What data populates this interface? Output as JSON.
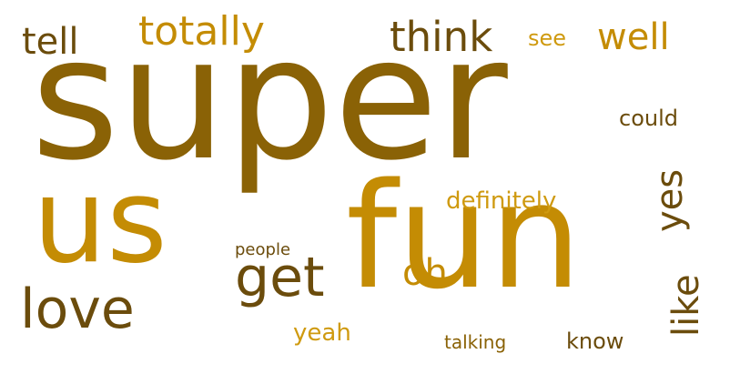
{
  "palette": {
    "dark_brown": "#6b4c0c",
    "brown": "#8a6206",
    "gold": "#c48c04",
    "light_gold": "#cf9a10"
  },
  "words": [
    {
      "text": "super",
      "weight": 1.0,
      "color": "#8a6206"
    },
    {
      "text": "fun",
      "weight": 0.95,
      "color": "#c48c04"
    },
    {
      "text": "us",
      "weight": 0.62,
      "color": "#c48c04"
    },
    {
      "text": "get",
      "weight": 0.31,
      "color": "#6b4c0c"
    },
    {
      "text": "love",
      "weight": 0.28,
      "color": "#6b4c0c"
    },
    {
      "text": "think",
      "weight": 0.18,
      "color": "#6b4c0c"
    },
    {
      "text": "totally",
      "weight": 0.18,
      "color": "#c48c04"
    },
    {
      "text": "tell",
      "weight": 0.16,
      "color": "#6b4c0c"
    },
    {
      "text": "well",
      "weight": 0.15,
      "color": "#c48c04"
    },
    {
      "text": "see",
      "weight": 0.1,
      "color": "#cf9a10"
    },
    {
      "text": "could",
      "weight": 0.1,
      "color": "#6b4c0c"
    },
    {
      "text": "yes",
      "weight": 0.15,
      "color": "#6b4c0c"
    },
    {
      "text": "definitely",
      "weight": 0.11,
      "color": "#cf9a10"
    },
    {
      "text": "like",
      "weight": 0.15,
      "color": "#6b4c0c"
    },
    {
      "text": "oh",
      "weight": 0.16,
      "color": "#c48c04"
    },
    {
      "text": "people",
      "weight": 0.08,
      "color": "#6b4c0c"
    },
    {
      "text": "yeah",
      "weight": 0.1,
      "color": "#cf9a10"
    },
    {
      "text": "talking",
      "weight": 0.08,
      "color": "#8a6206"
    },
    {
      "text": "know",
      "weight": 0.1,
      "color": "#6b4c0c"
    }
  ]
}
